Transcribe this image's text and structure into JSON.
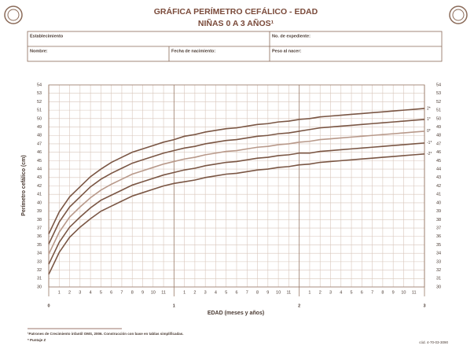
{
  "header": {
    "title": "GRÁFICA PERÍMETRO CEFÁLICO - EDAD",
    "subtitle": "NIÑAS 0 A 3 AÑOS¹"
  },
  "form": {
    "establishment": "Establecimiento",
    "record": "No. de expediente:",
    "name": "Nombre:",
    "birth_date": "Fecha de nacimiento:",
    "birth_weight": "Peso al nacer:"
  },
  "footer": {
    "notes": [
      "¹Patrones de Crecimiento infantil OMS, 2006. Construcción con base en tablas simplificadas.",
      "* Puntaje Z"
    ],
    "code": "cód. 4-70-03-3090"
  },
  "chart_data": {
    "type": "line",
    "x_label": "EDAD (meses y años)",
    "y_label": "Perímetro cefálico (cm)",
    "x": [
      0,
      1,
      2,
      3,
      4,
      5,
      6,
      7,
      8,
      9,
      10,
      11,
      12,
      13,
      14,
      15,
      16,
      17,
      18,
      19,
      20,
      21,
      22,
      23,
      24,
      25,
      26,
      27,
      28,
      29,
      30,
      31,
      32,
      33,
      34,
      35,
      36
    ],
    "xlim": [
      0,
      36
    ],
    "xticks": [
      0,
      {
        "value": 12,
        "label": "1"
      },
      {
        "value": 24,
        "label": "2"
      },
      {
        "value": 36,
        "label": "3"
      }
    ],
    "month_ticks": [
      1,
      2,
      3,
      4,
      5,
      6,
      7,
      8,
      9,
      10,
      11,
      {
        "value": 13,
        "label": "1"
      },
      {
        "value": 14,
        "label": "2"
      },
      {
        "value": 15,
        "label": "3"
      },
      {
        "value": 16,
        "label": "4"
      },
      {
        "value": 17,
        "label": "5"
      },
      {
        "value": 18,
        "label": "6"
      },
      {
        "value": 19,
        "label": "7"
      },
      {
        "value": 20,
        "label": "8"
      },
      {
        "value": 21,
        "label": "9"
      },
      {
        "value": 22,
        "label": "10"
      },
      {
        "value": 23,
        "label": "11"
      },
      {
        "value": 25,
        "label": "1"
      },
      {
        "value": 26,
        "label": "2"
      },
      {
        "value": 27,
        "label": "3"
      },
      {
        "value": 28,
        "label": "4"
      },
      {
        "value": 29,
        "label": "5"
      },
      {
        "value": 30,
        "label": "6"
      },
      {
        "value": 31,
        "label": "7"
      },
      {
        "value": 32,
        "label": "8"
      },
      {
        "value": 33,
        "label": "9"
      },
      {
        "value": 34,
        "label": "10"
      },
      {
        "value": 35,
        "label": "11"
      }
    ],
    "ylim": [
      30,
      54
    ],
    "yticks": [
      30,
      31,
      32,
      33,
      34,
      35,
      36,
      37,
      38,
      39,
      40,
      41,
      42,
      43,
      44,
      45,
      46,
      47,
      48,
      49,
      50,
      51,
      52,
      53,
      54
    ],
    "grid": true,
    "series": [
      {
        "name": "2*",
        "color": "#7a5644",
        "values": [
          36.3,
          38.9,
          40.7,
          41.9,
          43.1,
          44.0,
          44.8,
          45.4,
          46.0,
          46.4,
          46.8,
          47.2,
          47.5,
          47.9,
          48.1,
          48.4,
          48.6,
          48.8,
          48.9,
          49.1,
          49.3,
          49.4,
          49.6,
          49.7,
          49.9,
          50.0,
          50.2,
          50.3,
          50.4,
          50.5,
          50.6,
          50.7,
          50.8,
          50.9,
          51.0,
          51.1,
          51.2
        ]
      },
      {
        "name": "1*",
        "color": "#7a5644",
        "values": [
          35.1,
          37.7,
          39.5,
          40.7,
          41.9,
          42.8,
          43.5,
          44.1,
          44.7,
          45.1,
          45.5,
          45.9,
          46.2,
          46.5,
          46.7,
          47.0,
          47.2,
          47.4,
          47.5,
          47.7,
          47.9,
          48.0,
          48.2,
          48.3,
          48.5,
          48.7,
          48.9,
          49.0,
          49.1,
          49.2,
          49.3,
          49.4,
          49.5,
          49.6,
          49.7,
          49.8,
          49.9
        ]
      },
      {
        "name": "0*",
        "color": "#b8998a",
        "values": [
          33.9,
          36.5,
          38.3,
          39.5,
          40.6,
          41.5,
          42.2,
          42.8,
          43.4,
          43.8,
          44.2,
          44.6,
          44.9,
          45.2,
          45.4,
          45.7,
          45.9,
          46.1,
          46.2,
          46.4,
          46.6,
          46.7,
          46.9,
          47.0,
          47.2,
          47.3,
          47.5,
          47.6,
          47.7,
          47.8,
          47.9,
          48.0,
          48.1,
          48.2,
          48.3,
          48.4,
          48.5
        ]
      },
      {
        "name": "-1*",
        "color": "#7a5644",
        "values": [
          32.7,
          35.3,
          37.1,
          38.3,
          39.4,
          40.3,
          40.9,
          41.5,
          42.1,
          42.5,
          42.9,
          43.3,
          43.6,
          43.9,
          44.1,
          44.4,
          44.6,
          44.8,
          44.9,
          45.1,
          45.3,
          45.4,
          45.6,
          45.7,
          45.9,
          45.9,
          46.1,
          46.2,
          46.3,
          46.4,
          46.5,
          46.6,
          46.7,
          46.8,
          46.9,
          47.0,
          47.1
        ]
      },
      {
        "name": "-2*",
        "color": "#7a5644",
        "values": [
          31.5,
          34.1,
          35.9,
          37.1,
          38.1,
          39.0,
          39.6,
          40.2,
          40.8,
          41.2,
          41.6,
          42.0,
          42.3,
          42.5,
          42.7,
          43.0,
          43.2,
          43.4,
          43.5,
          43.7,
          43.9,
          44.0,
          44.2,
          44.3,
          44.5,
          44.6,
          44.8,
          44.9,
          45.0,
          45.1,
          45.2,
          45.3,
          45.4,
          45.5,
          45.6,
          45.7,
          45.8
        ]
      }
    ]
  }
}
